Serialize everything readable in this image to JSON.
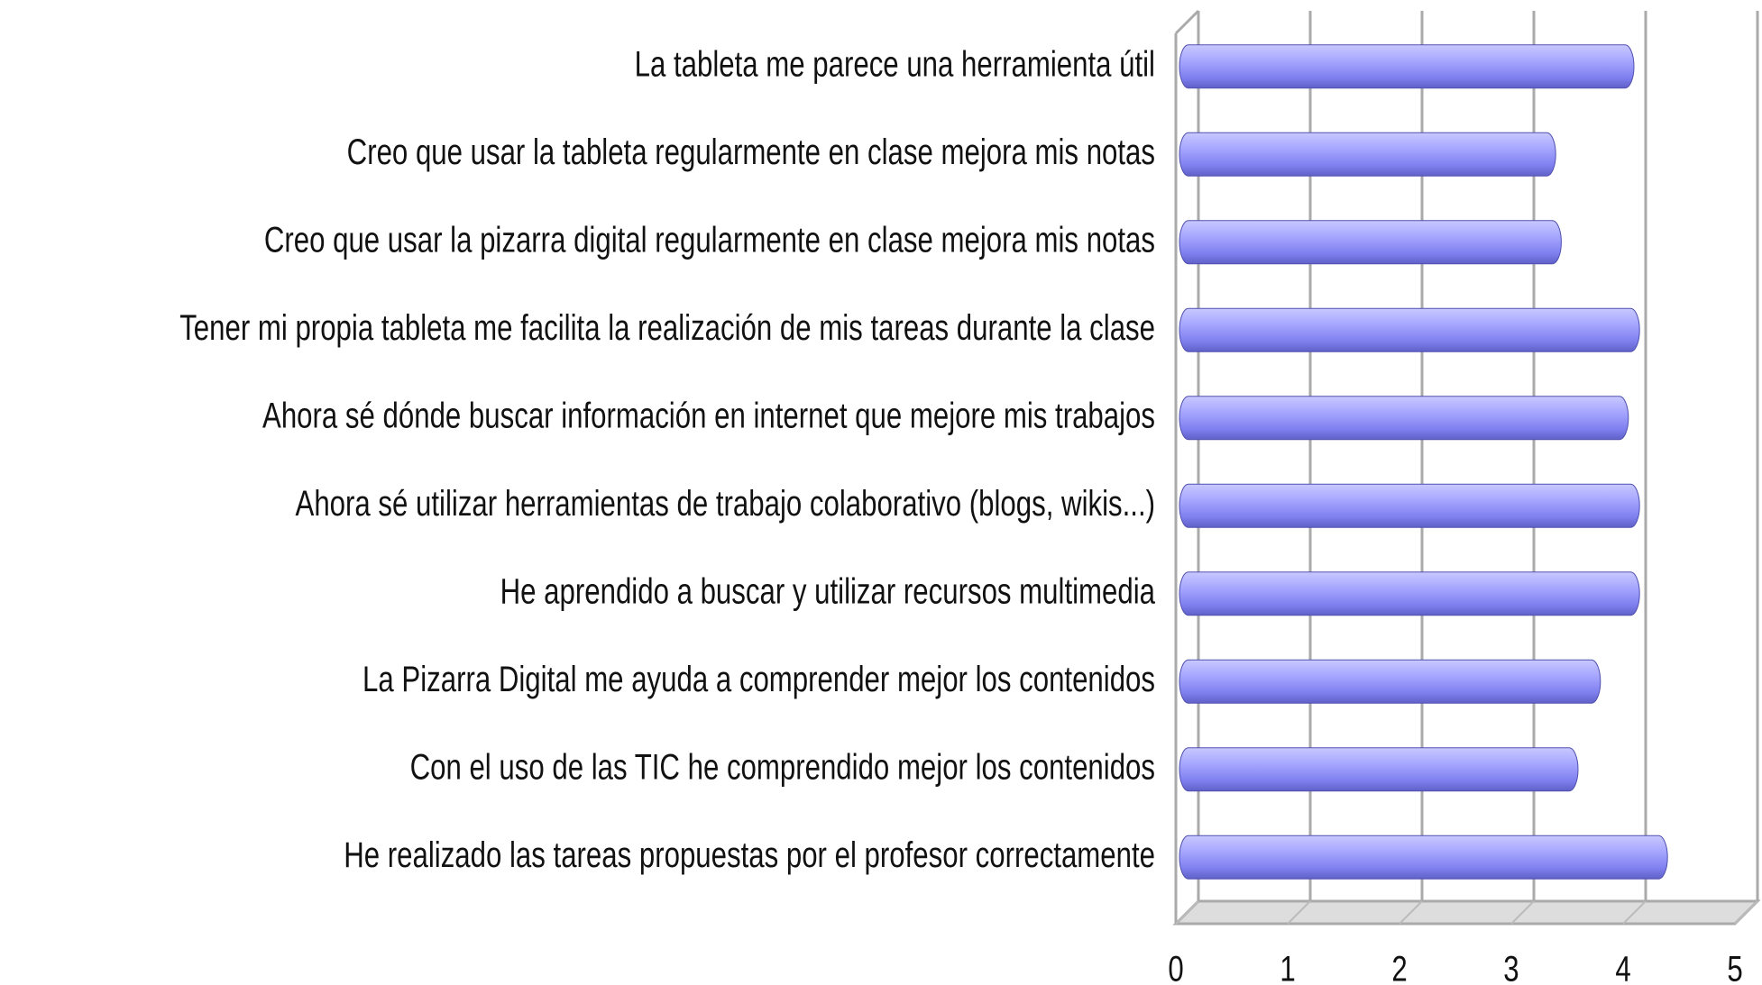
{
  "chart_data": {
    "type": "bar",
    "orientation": "horizontal",
    "categories": [
      "La tableta me parece una herramienta útil",
      "Creo que usar la tableta regularmente en clase mejora mis notas",
      "Creo que usar la pizarra digital regularmente en clase mejora mis notas",
      "Tener mi propia tableta me facilita la realización de mis tareas durante la clase",
      "Ahora sé dónde buscar información en internet que mejore mis trabajos",
      "Ahora sé utilizar herramientas de trabajo colaborativo (blogs, wikis...)",
      "He aprendido a buscar y utilizar recursos multimedia",
      "La Pizarra Digital me ayuda a comprender mejor los contenidos",
      "Con el uso de las TIC he comprendido mejor los contenidos",
      "He realizado las tareas propuestas por el profesor correctamente"
    ],
    "values": [
      4.0,
      3.3,
      3.35,
      4.05,
      3.95,
      4.05,
      4.05,
      3.7,
      3.5,
      4.3
    ],
    "color": "#9999ff",
    "xlim": [
      0,
      5
    ],
    "xticks": [
      0,
      1,
      2,
      3,
      4,
      5
    ],
    "grid": true
  }
}
